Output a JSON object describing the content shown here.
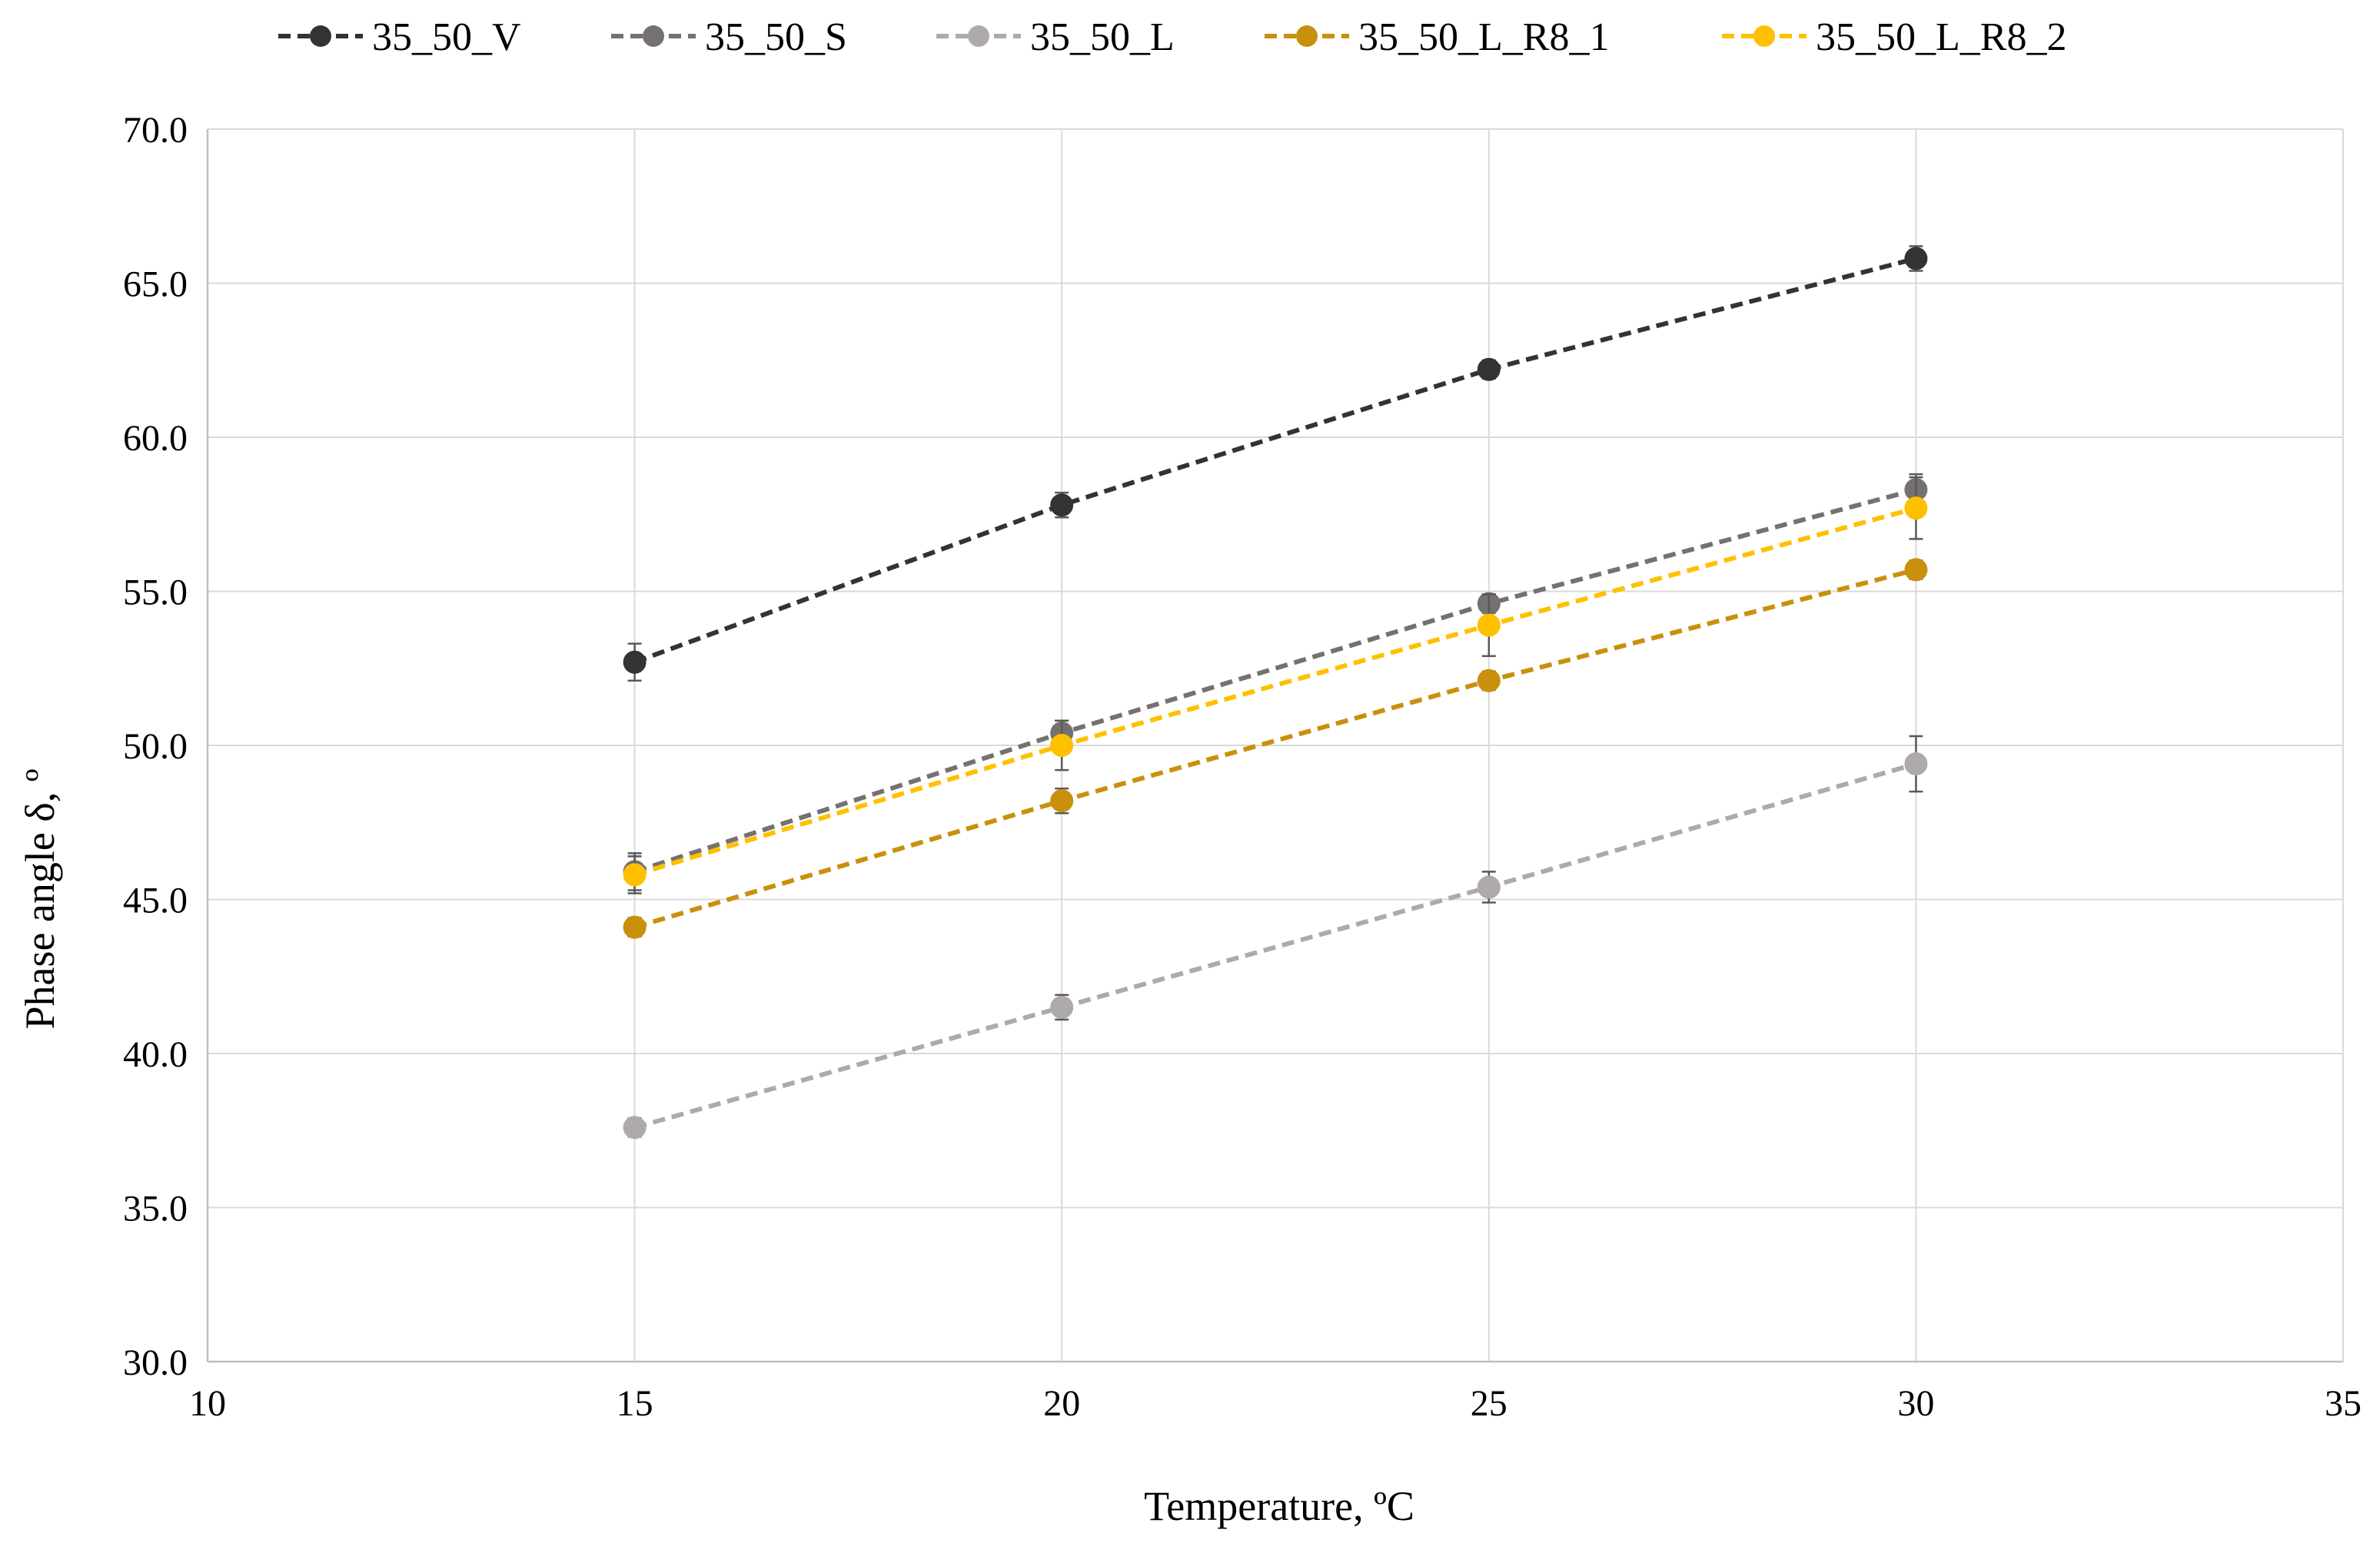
{
  "chart_data": {
    "type": "line",
    "title": "",
    "xlabel": "Temperature, ºC",
    "ylabel": "Phase angle δ, º",
    "xlim": [
      10,
      35
    ],
    "ylim": [
      30,
      70
    ],
    "xticks": [
      10,
      15,
      20,
      25,
      30,
      35
    ],
    "yticks": [
      30,
      35,
      40,
      45,
      50,
      55,
      60,
      65,
      70
    ],
    "xtick_labels": [
      "10",
      "15",
      "20",
      "25",
      "30",
      "35"
    ],
    "ytick_labels": [
      "30.0",
      "35.0",
      "40.0",
      "45.0",
      "50.0",
      "55.0",
      "60.0",
      "65.0",
      "70.0"
    ],
    "grid": true,
    "legend_position": "top",
    "x": [
      15,
      20,
      25,
      30
    ],
    "series": [
      {
        "name": "35_50_V",
        "color": "#333333",
        "values": [
          52.7,
          57.8,
          62.2,
          65.8
        ],
        "errors": [
          0.6,
          0.4,
          0.3,
          0.4
        ]
      },
      {
        "name": "35_50_S",
        "color": "#767171",
        "values": [
          45.9,
          50.4,
          54.6,
          58.3
        ],
        "errors": [
          0.6,
          0.4,
          0.3,
          0.5
        ]
      },
      {
        "name": "35_50_L",
        "color": "#aeaaaa",
        "values": [
          37.6,
          41.5,
          45.4,
          49.4
        ],
        "errors": [
          0.3,
          0.4,
          0.5,
          0.9
        ]
      },
      {
        "name": "35_50_L_R8_1",
        "color": "#c9900c",
        "values": [
          44.1,
          48.2,
          52.1,
          55.7
        ],
        "errors": [
          0.3,
          0.4,
          0.3,
          0.3
        ]
      },
      {
        "name": "35_50_L_R8_2",
        "color": "#ffc000",
        "values": [
          45.8,
          50.0,
          53.9,
          57.7
        ],
        "errors": [
          0.6,
          0.8,
          1.0,
          1.0
        ]
      }
    ]
  }
}
